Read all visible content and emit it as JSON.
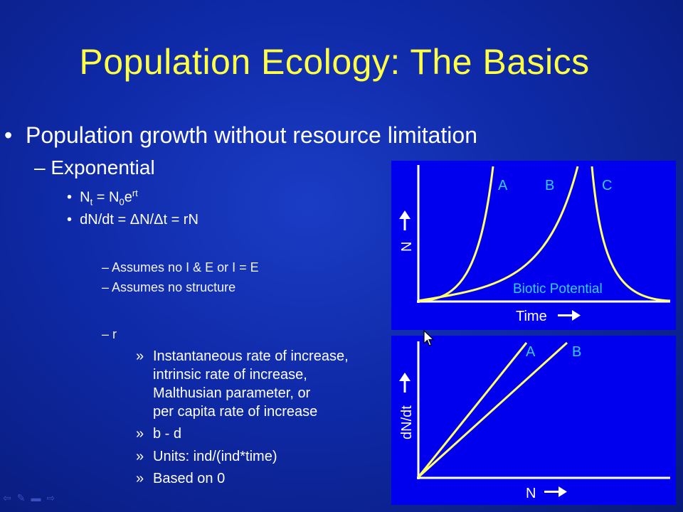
{
  "slide": {
    "title": "Population Ecology: The Basics",
    "main_bullet": "Population growth without resource limitation",
    "sub_bullet": "Exponential",
    "equations": {
      "eq1_N": "N",
      "eq1_sub_t": "t",
      "eq1_eq": " = N",
      "eq1_sub_0": "0",
      "eq1_e": "e",
      "eq1_sup_rt": "rt",
      "eq2": "dN/dt = ΔN/Δt = rN"
    },
    "assumptions": [
      "Assumes no I & E or I = E",
      "Assumes no structure"
    ],
    "r_label": "r",
    "r_details": [
      "Instantaneous rate of increase,",
      "intrinsic rate of increase,",
      "Malthusian parameter, or",
      "per capita rate of increase"
    ],
    "r_bd": "b - d",
    "r_units": "Units: ind/(ind*time)",
    "r_based": "Based on 0",
    "markers": {
      "bullet": "•",
      "dash": "–",
      "guillemet": "»"
    }
  },
  "graph_top": {
    "ylabel": "N",
    "xlabel": "Time",
    "curve_labels": [
      "A",
      "B",
      "C"
    ],
    "annotation": "Biotic Potential"
  },
  "graph_bottom": {
    "ylabel": "dN/dt",
    "xlabel": "N",
    "line_labels": [
      "A",
      "B"
    ]
  },
  "colors": {
    "background": "#0f2aa8",
    "panel": "#0000ee",
    "title": "#ffff44",
    "curve": "#ffff66",
    "annotation": "#33ccff"
  }
}
